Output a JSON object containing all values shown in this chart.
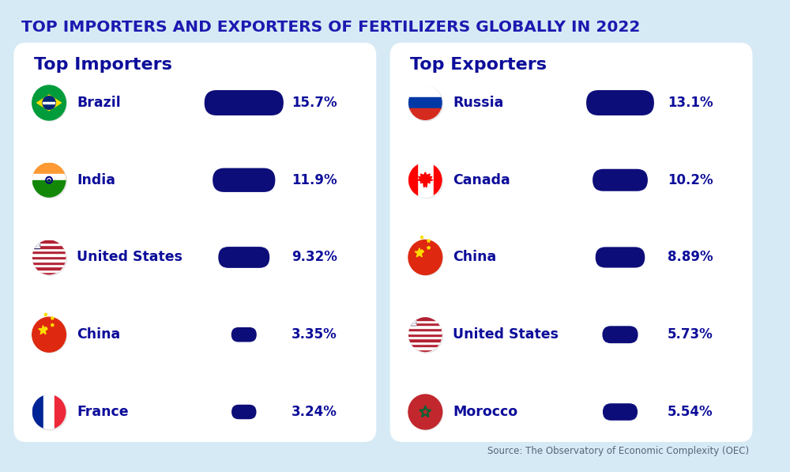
{
  "title": "TOP IMPORTERS AND EXPORTERS OF FERTILIZERS GLOBALLY IN 2022",
  "title_color": "#1a1ab0",
  "bg_color": "#d6eaf5",
  "card_color": "#ffffff",
  "bar_color": "#0d0d7a",
  "text_color": "#0d0d9a",
  "source_text": "Source: The Observatory of Economic Complexity (OEC)",
  "importers_title": "Top Importers",
  "exporters_title": "Top Exporters",
  "importers": [
    {
      "country": "Brazil",
      "pct": 15.7,
      "label": "15.7%"
    },
    {
      "country": "India",
      "pct": 11.9,
      "label": "11.9%"
    },
    {
      "country": "United States",
      "pct": 9.32,
      "label": "9.32%"
    },
    {
      "country": "China",
      "pct": 3.35,
      "label": "3.35%"
    },
    {
      "country": "France",
      "pct": 3.24,
      "label": "3.24%"
    }
  ],
  "exporters": [
    {
      "country": "Russia",
      "pct": 13.1,
      "label": "13.1%"
    },
    {
      "country": "Canada",
      "pct": 10.2,
      "label": "10.2%"
    },
    {
      "country": "China",
      "pct": 8.89,
      "label": "8.89%"
    },
    {
      "country": "United States",
      "pct": 5.73,
      "label": "5.73%"
    },
    {
      "country": "Morocco",
      "pct": 5.54,
      "label": "5.54%"
    }
  ],
  "max_pct": 16.0
}
